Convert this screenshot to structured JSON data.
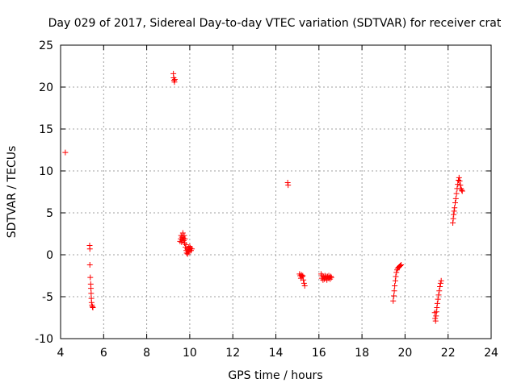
{
  "chart_data": {
    "type": "scatter",
    "title": "Day 029 of 2017, Sidereal Day-to-day VTEC variation (SDTVAR) for receiver crat",
    "xlabel": "GPS time / hours",
    "ylabel": "SDTVAR / TECUs",
    "xlim": [
      4,
      24
    ],
    "ylim": [
      -10,
      25
    ],
    "x_ticks": [
      4,
      6,
      8,
      10,
      12,
      14,
      16,
      18,
      20,
      22,
      24
    ],
    "y_ticks": [
      -10,
      -5,
      0,
      5,
      10,
      15,
      20,
      25
    ],
    "grid": true,
    "marker": "+",
    "color": "#ff0000",
    "series": [
      {
        "name": "SDTVAR",
        "points": [
          [
            4.22,
            12.2
          ],
          [
            5.35,
            1.1
          ],
          [
            5.36,
            0.7
          ],
          [
            5.36,
            -1.2
          ],
          [
            5.38,
            -2.7
          ],
          [
            5.4,
            -3.5
          ],
          [
            5.41,
            -4.0
          ],
          [
            5.42,
            -4.6
          ],
          [
            5.43,
            -5.2
          ],
          [
            5.44,
            -5.7
          ],
          [
            5.46,
            -6.0
          ],
          [
            5.48,
            -6.2
          ],
          [
            5.5,
            -6.3
          ],
          [
            9.24,
            21.6
          ],
          [
            9.25,
            21.1
          ],
          [
            9.27,
            20.8
          ],
          [
            9.29,
            20.6
          ],
          [
            9.31,
            20.9
          ],
          [
            9.55,
            1.6
          ],
          [
            9.58,
            1.9
          ],
          [
            9.6,
            2.3
          ],
          [
            9.62,
            1.5
          ],
          [
            9.64,
            2.1
          ],
          [
            9.66,
            1.8
          ],
          [
            9.68,
            2.6
          ],
          [
            9.7,
            2.0
          ],
          [
            9.72,
            1.7
          ],
          [
            9.74,
            2.3
          ],
          [
            9.76,
            1.4
          ],
          [
            9.78,
            1.9
          ],
          [
            9.8,
            0.9
          ],
          [
            9.82,
            1.2
          ],
          [
            9.84,
            0.5
          ],
          [
            9.86,
            0.2
          ],
          [
            9.88,
            0.7
          ],
          [
            9.9,
            0.1
          ],
          [
            9.92,
            0.4
          ],
          [
            9.94,
            0.9
          ],
          [
            9.96,
            0.3
          ],
          [
            9.98,
            0.6
          ],
          [
            10.0,
            1.0
          ],
          [
            10.03,
            0.8
          ],
          [
            10.06,
            0.5
          ],
          [
            10.1,
            0.7
          ],
          [
            14.55,
            8.6
          ],
          [
            14.57,
            8.3
          ],
          [
            15.1,
            -2.3
          ],
          [
            15.13,
            -2.5
          ],
          [
            15.16,
            -2.8
          ],
          [
            15.19,
            -2.4
          ],
          [
            15.22,
            -2.6
          ],
          [
            15.25,
            -2.5
          ],
          [
            15.28,
            -3.0
          ],
          [
            15.31,
            -3.4
          ],
          [
            15.34,
            -3.7
          ],
          [
            16.1,
            -2.3
          ],
          [
            16.13,
            -2.8
          ],
          [
            16.16,
            -2.5
          ],
          [
            16.19,
            -3.0
          ],
          [
            16.22,
            -2.6
          ],
          [
            16.25,
            -2.9
          ],
          [
            16.28,
            -2.5
          ],
          [
            16.31,
            -2.8
          ],
          [
            16.34,
            -2.6
          ],
          [
            16.37,
            -3.0
          ],
          [
            16.4,
            -2.6
          ],
          [
            16.43,
            -2.8
          ],
          [
            16.46,
            -2.5
          ],
          [
            16.49,
            -2.7
          ],
          [
            16.52,
            -2.9
          ],
          [
            16.55,
            -2.6
          ],
          [
            16.58,
            -2.7
          ],
          [
            19.45,
            -5.5
          ],
          [
            19.48,
            -4.9
          ],
          [
            19.5,
            -4.3
          ],
          [
            19.52,
            -3.7
          ],
          [
            19.55,
            -3.1
          ],
          [
            19.57,
            -2.6
          ],
          [
            19.6,
            -2.1
          ],
          [
            19.63,
            -1.8
          ],
          [
            19.66,
            -1.6
          ],
          [
            19.7,
            -1.5
          ],
          [
            19.74,
            -1.4
          ],
          [
            19.78,
            -1.3
          ],
          [
            19.82,
            -1.2
          ],
          [
            21.38,
            -6.9
          ],
          [
            21.4,
            -7.6
          ],
          [
            21.42,
            -7.9
          ],
          [
            21.44,
            -7.3
          ],
          [
            21.46,
            -6.8
          ],
          [
            21.48,
            -6.3
          ],
          [
            21.5,
            -5.8
          ],
          [
            21.53,
            -5.3
          ],
          [
            21.56,
            -4.8
          ],
          [
            21.59,
            -4.3
          ],
          [
            21.62,
            -3.8
          ],
          [
            21.65,
            -3.4
          ],
          [
            21.68,
            -3.1
          ],
          [
            22.22,
            3.8
          ],
          [
            22.24,
            4.3
          ],
          [
            22.26,
            4.8
          ],
          [
            22.28,
            5.2
          ],
          [
            22.3,
            5.6
          ],
          [
            22.33,
            6.2
          ],
          [
            22.36,
            6.7
          ],
          [
            22.39,
            7.3
          ],
          [
            22.42,
            7.9
          ],
          [
            22.45,
            8.4
          ],
          [
            22.48,
            8.9
          ],
          [
            22.51,
            9.2
          ],
          [
            22.54,
            8.8
          ],
          [
            22.57,
            8.3
          ],
          [
            22.6,
            7.9
          ],
          [
            22.63,
            7.7
          ],
          [
            22.66,
            7.6
          ]
        ]
      }
    ]
  }
}
